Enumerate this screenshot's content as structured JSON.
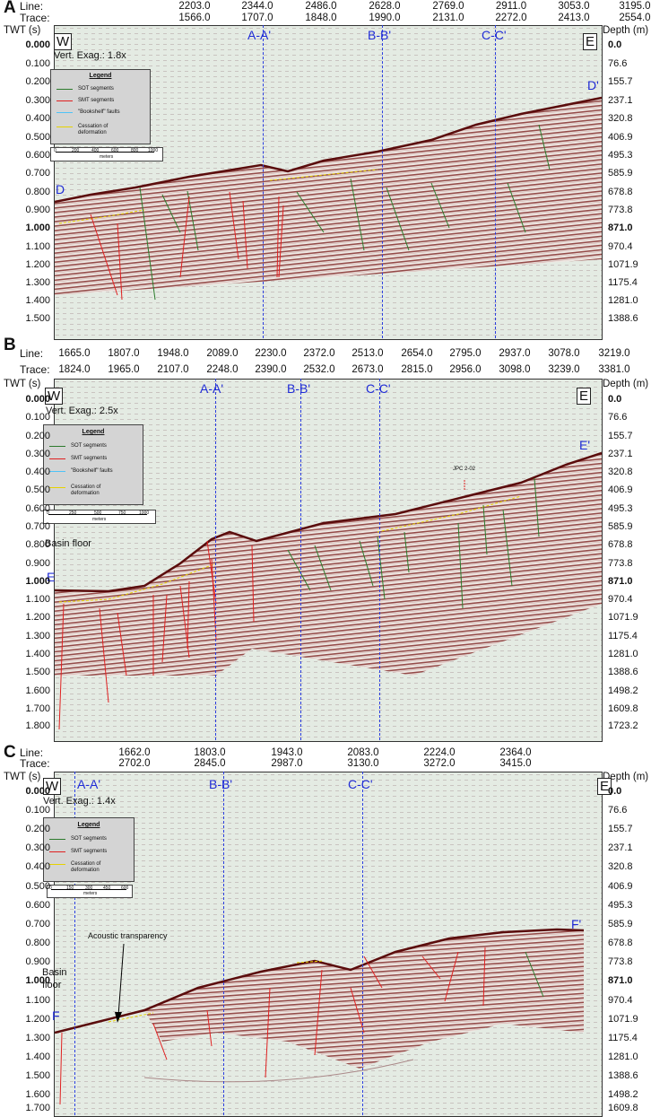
{
  "panels": [
    {
      "label": "A",
      "header": {
        "line_label": "Line:",
        "trace_label": "Trace:",
        "lines": [
          "2203.0",
          "2344.0",
          "2486.0",
          "2628.0",
          "2769.0",
          "2911.0",
          "3053.0",
          "3195.0"
        ],
        "traces": [
          "1566.0",
          "1707.0",
          "1848.0",
          "1990.0",
          "2131.0",
          "2272.0",
          "2413.0",
          "2554.0"
        ]
      },
      "twt_title": "TWT (s)",
      "depth_title": "Depth (m)",
      "twt": [
        "0.000",
        "0.100",
        "0.200",
        "0.300",
        "0.400",
        "0.500",
        "0.600",
        "0.700",
        "0.800",
        "0.900",
        "1.000",
        "1.100",
        "1.200",
        "1.300",
        "1.400",
        "1.500"
      ],
      "depth": [
        "0.0",
        "76.6",
        "155.7",
        "237.1",
        "320.8",
        "406.9",
        "495.3",
        "585.9",
        "678.8",
        "773.8",
        "871.0",
        "970.4",
        "1071.9",
        "1175.4",
        "1281.0",
        "1388.6"
      ],
      "west": "W",
      "east": "E",
      "vert_exag": "Vert. Exag.: 1.8x",
      "sections": [
        "A-A'",
        "B-B'",
        "C-C'"
      ],
      "start_label": "D",
      "end_label": "D'",
      "legend": {
        "title": "Legend",
        "items": [
          {
            "label": "SOT segments",
            "color": "#2c7a2c"
          },
          {
            "label": "SMT segments",
            "color": "#e02020"
          },
          {
            "label": "\"Bookshelf\" faults",
            "color": "#4fc3f7"
          },
          {
            "label": "Cessation of deformation",
            "color": "#e6d200"
          }
        ]
      },
      "scale": {
        "ticks": [
          "0",
          "200",
          "400",
          "600",
          "800",
          "1000"
        ],
        "unit": "meters"
      }
    },
    {
      "label": "B",
      "header": {
        "line_label": "Line:",
        "trace_label": "Trace:",
        "lines": [
          "1665.0",
          "1807.0",
          "1948.0",
          "2089.0",
          "2230.0",
          "2372.0",
          "2513.0",
          "2654.0",
          "2795.0",
          "2937.0",
          "3078.0",
          "3219.0"
        ],
        "traces": [
          "1824.0",
          "1965.0",
          "2107.0",
          "2248.0",
          "2390.0",
          "2532.0",
          "2673.0",
          "2815.0",
          "2956.0",
          "3098.0",
          "3239.0",
          "3381.0"
        ]
      },
      "twt_title": "TWT (s)",
      "depth_title": "Depth (m)",
      "twt": [
        "0.000",
        "0.100",
        "0.200",
        "0.300",
        "0.400",
        "0.500",
        "0.600",
        "0.700",
        "0.800",
        "0.900",
        "1.000",
        "1.100",
        "1.200",
        "1.300",
        "1.400",
        "1.500",
        "1.600",
        "1.700",
        "1.800"
      ],
      "depth": [
        "0.0",
        "76.6",
        "155.7",
        "237.1",
        "320.8",
        "406.9",
        "495.3",
        "585.9",
        "678.8",
        "773.8",
        "871.0",
        "970.4",
        "1071.9",
        "1175.4",
        "1281.0",
        "1388.6",
        "1498.2",
        "1609.8",
        "1723.2"
      ],
      "west": "W",
      "east": "E",
      "vert_exag": "Vert. Exag.: 2.5x",
      "sections": [
        "A-A'",
        "B-B'",
        "C-C'"
      ],
      "start_label": "E",
      "end_label": "E'",
      "basin_floor": "Basin floor",
      "core_label": "JPC 2-02",
      "legend": {
        "title": "Legend",
        "items": [
          {
            "label": "SOT segments",
            "color": "#2c7a2c"
          },
          {
            "label": "SMT segments",
            "color": "#e02020"
          },
          {
            "label": "\"Bookshelf\" faults",
            "color": "#4fc3f7"
          },
          {
            "label": "Cessation of deformation",
            "color": "#e6d200"
          }
        ]
      },
      "scale": {
        "ticks": [
          "0",
          "250",
          "500",
          "750",
          "1000"
        ],
        "unit": "meters"
      }
    },
    {
      "label": "C",
      "header": {
        "line_label": "Line:",
        "trace_label": "Trace:",
        "lines": [
          "1662.0",
          "1803.0",
          "1943.0",
          "2083.0",
          "2224.0",
          "2364.0"
        ],
        "traces": [
          "2702.0",
          "2845.0",
          "2987.0",
          "3130.0",
          "3272.0",
          "3415.0"
        ]
      },
      "twt_title": "TWT (s)",
      "depth_title": "Depth (m)",
      "twt": [
        "0.000",
        "0.100",
        "0.200",
        "0.300",
        "0.400",
        "0.500",
        "0.600",
        "0.700",
        "0.800",
        "0.900",
        "1.000",
        "1.100",
        "1.200",
        "1.300",
        "1.400",
        "1.500",
        "1.600",
        "1.700"
      ],
      "depth": [
        "0.0",
        "76.6",
        "155.7",
        "237.1",
        "320.8",
        "406.9",
        "495.3",
        "585.9",
        "678.8",
        "773.8",
        "871.0",
        "970.4",
        "1071.9",
        "1175.4",
        "1281.0",
        "1388.6",
        "1498.2",
        "1609.8"
      ],
      "west": "W",
      "east": "E",
      "vert_exag": "Vert. Exag.: 1.4x",
      "sections": [
        "A-A'",
        "B-B'",
        "C-C'"
      ],
      "start_label": "F",
      "end_label": "F'",
      "basin_floor": "Basin\nfloor",
      "acoustic": "Acoustic transparency",
      "legend": {
        "title": "Legend",
        "items": [
          {
            "label": "SOT segments",
            "color": "#2c7a2c"
          },
          {
            "label": "SMT segments",
            "color": "#e02020"
          },
          {
            "label": "Cessation of deformation",
            "color": "#e6d200"
          }
        ]
      },
      "scale": {
        "ticks": [
          "0",
          "150",
          "300",
          "450",
          "600"
        ],
        "unit": "meters"
      }
    }
  ]
}
